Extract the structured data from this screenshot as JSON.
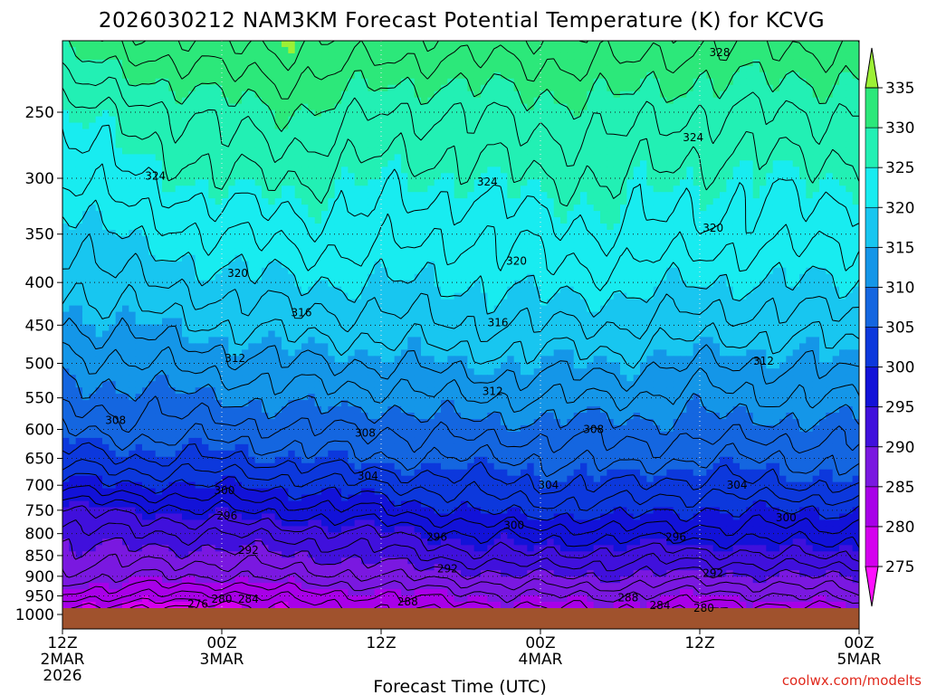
{
  "chart_data": {
    "type": "heatmap",
    "title": "2026030212 NAM3KM Forecast Potential Temperature (K) for KCVG",
    "xlabel": "Forecast Time (UTC)",
    "ylabel": "",
    "credit": "coolwx.com/modelts",
    "x_ticks": [
      {
        "hour": 0,
        "lines": [
          "12Z",
          "2MAR",
          "2026"
        ]
      },
      {
        "hour": 12,
        "lines": [
          "00Z",
          "3MAR"
        ]
      },
      {
        "hour": 24,
        "lines": [
          "12Z"
        ]
      },
      {
        "hour": 36,
        "lines": [
          "00Z",
          "4MAR"
        ]
      },
      {
        "hour": 48,
        "lines": [
          "12Z"
        ]
      },
      {
        "hour": 60,
        "lines": [
          "00Z",
          "5MAR"
        ]
      }
    ],
    "xlim": [
      0,
      60
    ],
    "y_ticks": [
      "250",
      "300",
      "350",
      "400",
      "450",
      "500",
      "550",
      "600",
      "650",
      "700",
      "750",
      "800",
      "850",
      "900",
      "950",
      "1000"
    ],
    "ylim_hpa": [
      1000,
      200
    ],
    "colorbar": {
      "levels": [
        275,
        280,
        285,
        290,
        295,
        300,
        305,
        310,
        315,
        320,
        325,
        330,
        335
      ],
      "colors": [
        "#ff10ff",
        "#d400ee",
        "#a800e8",
        "#7a18e0",
        "#4010dc",
        "#1212d8",
        "#0c38dc",
        "#1466e0",
        "#1496e8",
        "#18c6f0",
        "#18ecf0",
        "#22f0b4",
        "#2ce87a",
        "#2ee042",
        "#9cf036"
      ]
    },
    "terrain_color": "#a0522d",
    "field_theta_k": {
      "pressure_hpa": [
        1000,
        950,
        900,
        850,
        800,
        750,
        700,
        650,
        600,
        550,
        500,
        450,
        400,
        350,
        300,
        250,
        200
      ],
      "columns": [
        {
          "hour": 0,
          "theta": [
            278,
            283,
            287,
            289,
            291,
            294,
            299,
            303,
            306,
            309,
            311,
            314,
            316,
            318,
            322,
            325,
            332
          ]
        },
        {
          "hour": 6,
          "theta": [
            276,
            282,
            286,
            289,
            292,
            295,
            300,
            304,
            307,
            309,
            312,
            315,
            318,
            321,
            324,
            327,
            334
          ]
        },
        {
          "hour": 12,
          "theta": [
            277,
            281,
            286,
            289,
            292,
            296,
            300,
            304,
            307,
            310,
            313,
            316,
            319,
            322,
            326,
            329,
            335
          ]
        },
        {
          "hour": 18,
          "theta": [
            280,
            283,
            287,
            290,
            293,
            297,
            301,
            305,
            308,
            311,
            314,
            317,
            320,
            323,
            326,
            330,
            335
          ]
        },
        {
          "hour": 24,
          "theta": [
            281,
            284,
            288,
            291,
            294,
            298,
            302,
            306,
            308,
            311,
            314,
            317,
            320,
            323,
            325,
            328,
            334
          ]
        },
        {
          "hour": 30,
          "theta": [
            282,
            285,
            289,
            293,
            296,
            300,
            303,
            306,
            309,
            312,
            315,
            318,
            320,
            322,
            325,
            328,
            334
          ]
        },
        {
          "hour": 36,
          "theta": [
            283,
            286,
            290,
            294,
            297,
            301,
            304,
            306,
            309,
            312,
            315,
            318,
            321,
            323,
            326,
            329,
            334
          ]
        },
        {
          "hour": 42,
          "theta": [
            283,
            286,
            290,
            293,
            297,
            301,
            304,
            307,
            309,
            312,
            315,
            318,
            321,
            324,
            326,
            329,
            334
          ]
        },
        {
          "hour": 48,
          "theta": [
            281,
            285,
            289,
            293,
            297,
            300,
            303,
            306,
            309,
            311,
            314,
            317,
            320,
            323,
            325,
            328,
            333
          ]
        },
        {
          "hour": 54,
          "theta": [
            282,
            286,
            290,
            294,
            297,
            300,
            304,
            306,
            309,
            312,
            314,
            317,
            320,
            323,
            325,
            328,
            333
          ]
        },
        {
          "hour": 60,
          "theta": [
            283,
            287,
            290,
            294,
            297,
            300,
            304,
            307,
            309,
            312,
            315,
            317,
            320,
            322,
            325,
            328,
            333
          ]
        }
      ]
    },
    "contour_labels": [
      {
        "value": "328",
        "hour": 49.5,
        "p": 212
      },
      {
        "value": "324",
        "hour": 47.5,
        "p": 268
      },
      {
        "value": "324",
        "hour": 7.0,
        "p": 298
      },
      {
        "value": "324",
        "hour": 32.0,
        "p": 303
      },
      {
        "value": "320",
        "hour": 49.0,
        "p": 344
      },
      {
        "value": "320",
        "hour": 34.2,
        "p": 377
      },
      {
        "value": "320",
        "hour": 13.2,
        "p": 390
      },
      {
        "value": "316",
        "hour": 18.0,
        "p": 435
      },
      {
        "value": "316",
        "hour": 32.8,
        "p": 447
      },
      {
        "value": "312",
        "hour": 13.0,
        "p": 493
      },
      {
        "value": "312",
        "hour": 52.8,
        "p": 497
      },
      {
        "value": "312",
        "hour": 32.4,
        "p": 540
      },
      {
        "value": "308",
        "hour": 4.0,
        "p": 585
      },
      {
        "value": "308",
        "hour": 22.8,
        "p": 606
      },
      {
        "value": "308",
        "hour": 40.0,
        "p": 600
      },
      {
        "value": "304",
        "hour": 23.0,
        "p": 682
      },
      {
        "value": "304",
        "hour": 36.6,
        "p": 700
      },
      {
        "value": "304",
        "hour": 50.8,
        "p": 700
      },
      {
        "value": "300",
        "hour": 12.2,
        "p": 710
      },
      {
        "value": "300",
        "hour": 54.5,
        "p": 765
      },
      {
        "value": "300",
        "hour": 34.0,
        "p": 782
      },
      {
        "value": "296",
        "hour": 12.4,
        "p": 762
      },
      {
        "value": "296",
        "hour": 28.2,
        "p": 808
      },
      {
        "value": "296",
        "hour": 46.2,
        "p": 808
      },
      {
        "value": "292",
        "hour": 14.0,
        "p": 838
      },
      {
        "value": "292",
        "hour": 29.0,
        "p": 882
      },
      {
        "value": "292",
        "hour": 49.0,
        "p": 893
      },
      {
        "value": "288",
        "hour": 26.0,
        "p": 966
      },
      {
        "value": "288",
        "hour": 42.6,
        "p": 955
      },
      {
        "value": "284",
        "hour": 14.0,
        "p": 958
      },
      {
        "value": "284",
        "hour": 45.0,
        "p": 975
      },
      {
        "value": "280",
        "hour": 12.0,
        "p": 958
      },
      {
        "value": "280",
        "hour": 48.3,
        "p": 983
      },
      {
        "value": "276",
        "hour": 10.2,
        "p": 972
      }
    ]
  }
}
